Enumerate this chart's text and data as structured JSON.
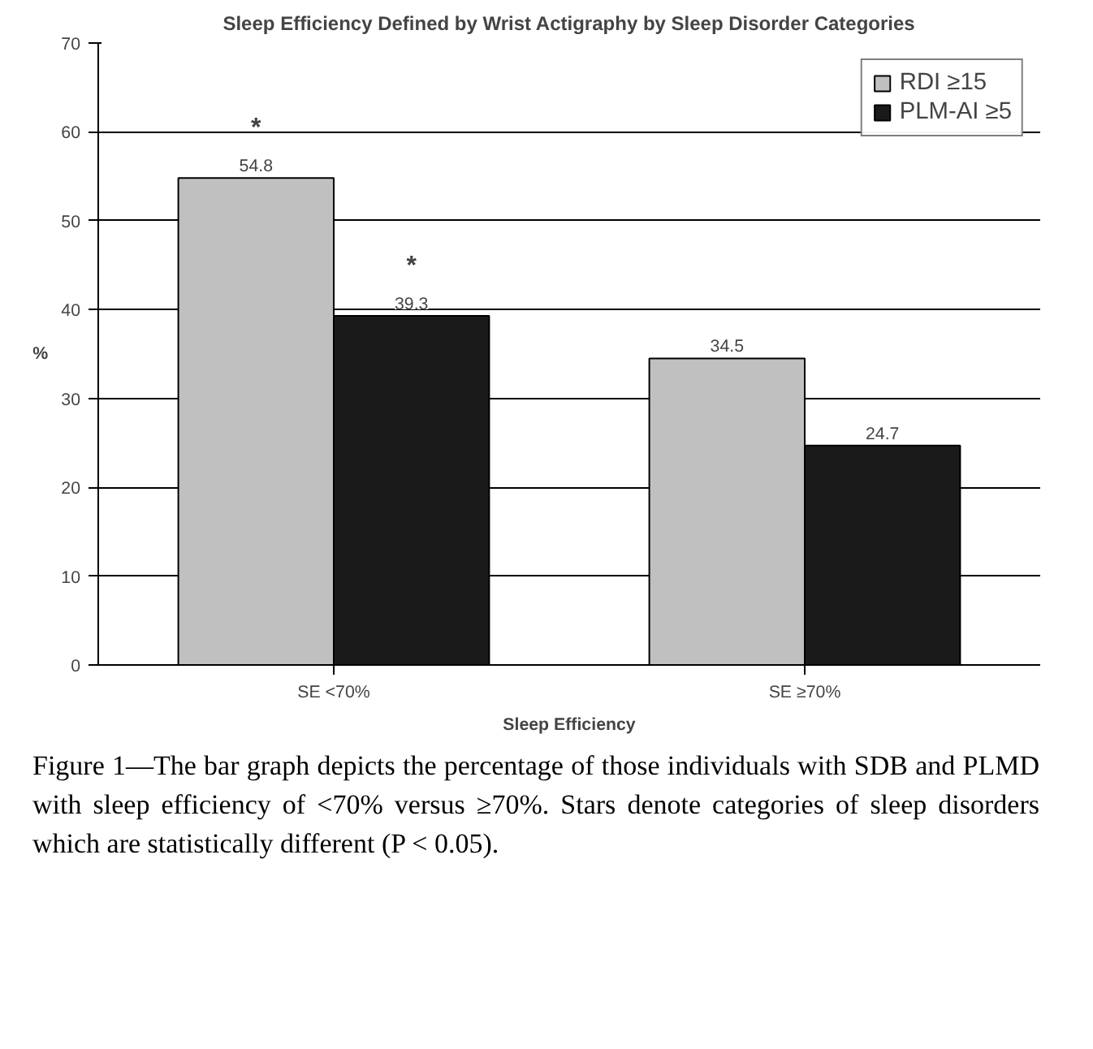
{
  "chart_data": {
    "type": "bar",
    "title": "Sleep Efficiency Defined by Wrist Actigraphy by Sleep Disorder Categories",
    "xlabel": "Sleep Efficiency",
    "ylabel": "%",
    "categories": [
      "SE <70%",
      "SE ≥70%"
    ],
    "series": [
      {
        "name": "RDI ≥15",
        "color": "#c0c0c0",
        "values": [
          54.8,
          34.5
        ]
      },
      {
        "name": "PLM-AI ≥5",
        "color": "#1a1a1a",
        "values": [
          39.3,
          24.7
        ]
      }
    ],
    "ylim": [
      0,
      70
    ],
    "yticks": [
      0,
      10,
      20,
      30,
      40,
      50,
      60,
      70
    ],
    "grid": "y",
    "legend": "top right",
    "data_labels": true,
    "annotations": [
      "*",
      "*",
      "Figure 1—The bar graph depicts the percentage of those individuals with SDB and PLMD with sleep efficiency of <70% versus ≥70%. Stars denote categories of sleep disorders which are statistically different (P < 0.05)."
    ]
  }
}
